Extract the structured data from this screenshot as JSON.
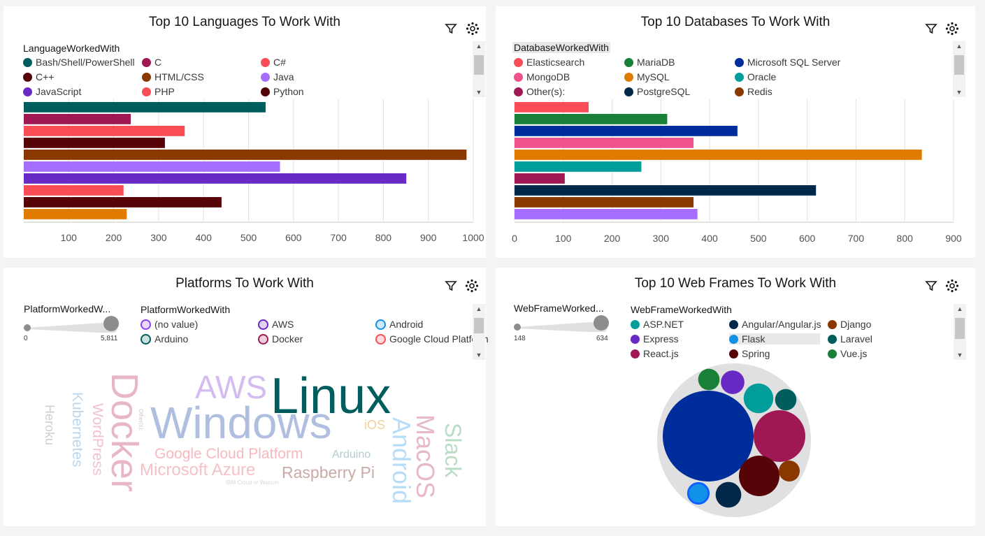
{
  "colors": {
    "icon": "#161616",
    "grid": "#e0e0e0",
    "axis": "#8d8d8d",
    "scroll_thumb": "#c6c6c6"
  },
  "icons": {
    "filter": "filter-icon",
    "settings": "settings-icon"
  },
  "languages": {
    "title": "Top 10 Languages To Work With",
    "legend_title": "LanguageWorkedWith",
    "legend": [
      {
        "label": "Bash/Shell/PowerShell",
        "color": "#005d5d"
      },
      {
        "label": "C",
        "color": "#9f1853"
      },
      {
        "label": "C#",
        "color": "#fa4d56"
      },
      {
        "label": "C++",
        "color": "#570408"
      },
      {
        "label": "HTML/CSS",
        "color": "#8a3800"
      },
      {
        "label": "Java",
        "color": "#a56eff"
      },
      {
        "label": "JavaScript",
        "color": "#6929c4"
      },
      {
        "label": "PHP",
        "color": "#fa4d56"
      },
      {
        "label": "Python",
        "color": "#520408"
      }
    ],
    "ticks": [
      "100",
      "200",
      "300",
      "400",
      "500",
      "600",
      "700",
      "800",
      "900",
      "1000"
    ],
    "chart_data": {
      "type": "bar",
      "orientation": "horizontal",
      "xlim": [
        0,
        1000
      ],
      "values": [
        538,
        238,
        358,
        314,
        985,
        570,
        851,
        222,
        440,
        229
      ],
      "colors": [
        "#005d5d",
        "#9f1853",
        "#fa4d56",
        "#570408",
        "#8a3800",
        "#a56eff",
        "#6929c4",
        "#fa4d56",
        "#570408",
        "#e07b00"
      ]
    }
  },
  "databases": {
    "title": "Top 10 Databases To Work With",
    "legend_title": "DatabaseWorkedWith",
    "legend": [
      {
        "label": "Elasticsearch",
        "color": "#fa4d56"
      },
      {
        "label": "MariaDB",
        "color": "#198038"
      },
      {
        "label": "Microsoft SQL Server",
        "color": "#002d9c"
      },
      {
        "label": "MongoDB",
        "color": "#ee538b"
      },
      {
        "label": "MySQL",
        "color": "#e07b00"
      },
      {
        "label": "Oracle",
        "color": "#009d9a"
      },
      {
        "label": "Other(s):",
        "color": "#9f1853"
      },
      {
        "label": "PostgreSQL",
        "color": "#012749"
      },
      {
        "label": "Redis",
        "color": "#8a3800"
      }
    ],
    "ticks": [
      "0",
      "100",
      "200",
      "300",
      "400",
      "500",
      "600",
      "700",
      "800",
      "900"
    ],
    "chart_data": {
      "type": "bar",
      "orientation": "horizontal",
      "xlim": [
        0,
        900
      ],
      "values": [
        152,
        313,
        457,
        367,
        835,
        260,
        103,
        618,
        367,
        375
      ],
      "colors": [
        "#fa4d56",
        "#198038",
        "#002d9c",
        "#ee538b",
        "#e07b00",
        "#009d9a",
        "#9f1853",
        "#012749",
        "#8a3800",
        "#a56eff"
      ]
    }
  },
  "platforms": {
    "title": "Platforms To Work With",
    "slider_label": "PlatformWorkedW...",
    "slider_min": "0",
    "slider_max": "5,811",
    "legend_title": "PlatformWorkedWith",
    "legend": [
      {
        "label": "(no value)",
        "color": "#8a3ffc"
      },
      {
        "label": "AWS",
        "color": "#6929c4"
      },
      {
        "label": "Android",
        "color": "#1192e8"
      },
      {
        "label": "Arduino",
        "color": "#005d5d"
      },
      {
        "label": "Docker",
        "color": "#9f1853"
      },
      {
        "label": "Google Cloud Platform",
        "color": "#fa4d56"
      }
    ],
    "words": [
      {
        "text": "Linux",
        "color": "#005d5d"
      },
      {
        "text": "Windows",
        "color": "#b0bedf"
      },
      {
        "text": "AWS",
        "color": "#d4bbf0"
      },
      {
        "text": "Docker",
        "color": "#e8b7c6"
      },
      {
        "text": "Google Cloud Platform",
        "color": "#f7b9be"
      },
      {
        "text": "Microsoft Azure",
        "color": "#f5c1c4"
      },
      {
        "text": "Raspberry Pi",
        "color": "#c9aaa6"
      },
      {
        "text": "Arduino",
        "color": "#b3cccc"
      },
      {
        "text": "iOS",
        "color": "#f3cf9e"
      },
      {
        "text": "Android",
        "color": "#b6dcf6"
      },
      {
        "text": "MacOS",
        "color": "#e6b8c8"
      },
      {
        "text": "Slack",
        "color": "#b9dcc4"
      },
      {
        "text": "Kubernetes",
        "color": "#bcd7ec"
      },
      {
        "text": "WordPress",
        "color": "#f2c2d2"
      },
      {
        "text": "Heroku",
        "color": "#cfcfcf"
      },
      {
        "text": "IBM Cloud or Watson",
        "color": "#d9d9d9"
      },
      {
        "text": "Other(s):",
        "color": "#d9c2c9"
      }
    ]
  },
  "webframes": {
    "title": "Top 10 Web Frames To Work With",
    "slider_label": "WebFrameWorked...",
    "slider_min": "148",
    "slider_max": "634",
    "legend_title": "WebFrameWorkedWith",
    "legend": [
      {
        "label": "ASP.NET",
        "color": "#009d9a"
      },
      {
        "label": "Angular/Angular.js",
        "color": "#012749"
      },
      {
        "label": "Django",
        "color": "#8a3800"
      },
      {
        "label": "Express",
        "color": "#6929c4"
      },
      {
        "label": "Flask",
        "color": "#1192e8"
      },
      {
        "label": "Laravel",
        "color": "#005d5d"
      },
      {
        "label": "React.js",
        "color": "#9f1853"
      },
      {
        "label": "Spring",
        "color": "#570408"
      },
      {
        "label": "Vue.js",
        "color": "#198038"
      }
    ],
    "chart_data": {
      "type": "bubble",
      "bubbles": [
        {
          "color": "#002d9c",
          "value": 634
        },
        {
          "color": "#9f1853",
          "value": 320
        },
        {
          "color": "#570408",
          "value": 250
        },
        {
          "color": "#009d9a",
          "value": 190
        },
        {
          "color": "#012749",
          "value": 170
        },
        {
          "color": "#6929c4",
          "value": 160
        },
        {
          "color": "#1192e8",
          "value": 155
        },
        {
          "color": "#198038",
          "value": 150
        },
        {
          "color": "#005d5d",
          "value": 150
        },
        {
          "color": "#8a3800",
          "value": 148
        }
      ]
    }
  }
}
